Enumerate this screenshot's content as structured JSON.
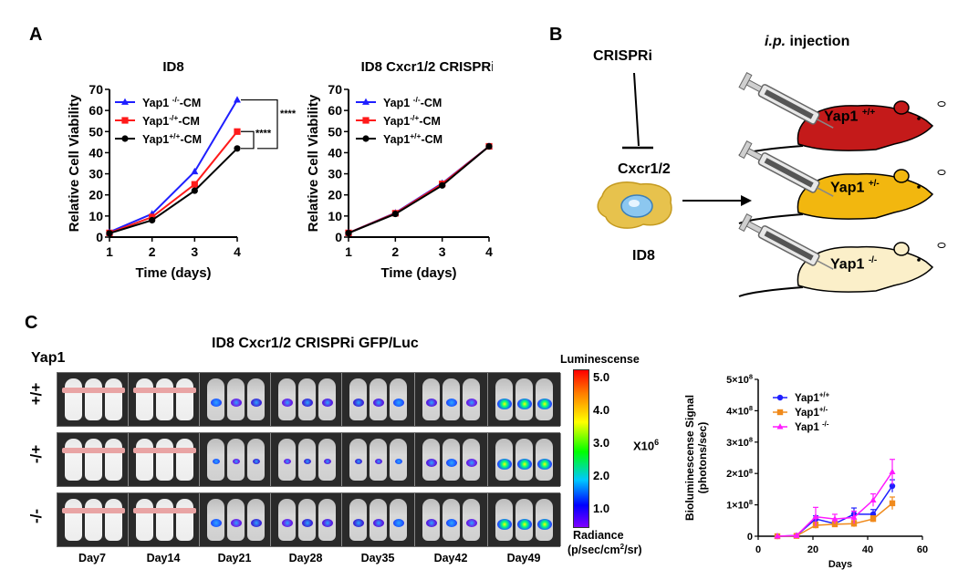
{
  "panel_a": {
    "letter": "A",
    "chart_data": [
      {
        "type": "line",
        "title": "ID8",
        "xlabel": "Time (days)",
        "ylabel": "Relative Cell Viability",
        "x": [
          1,
          2,
          3,
          4
        ],
        "xlim": [
          1,
          4
        ],
        "ylim": [
          0,
          70
        ],
        "yticks": [
          0,
          10,
          20,
          30,
          40,
          50,
          60,
          70
        ],
        "legend_position": "top-left",
        "series": [
          {
            "name": "Yap1 -/--CM",
            "name_base": "Yap1 ",
            "name_sup": "-/-",
            "name_tail": "-CM",
            "color": "#1f1fff",
            "marker": "triangle",
            "values": [
              2.4,
              11,
              31,
              65
            ]
          },
          {
            "name": "Yap1-/+-CM",
            "name_base": "Yap1",
            "name_sup": "-/+",
            "name_tail": "-CM",
            "color": "#ff1a1a",
            "marker": "square",
            "values": [
              2,
              9.5,
              25,
              50
            ]
          },
          {
            "name": "Yap1+/+-CM",
            "name_base": "Yap1",
            "name_sup": "+/+",
            "name_tail": "-CM",
            "color": "#000000",
            "marker": "circle",
            "values": [
              1.8,
              8,
              22,
              42
            ]
          }
        ],
        "annotations": [
          "****",
          "****"
        ]
      },
      {
        "type": "line",
        "title": "ID8 Cxcr1/2 CRISPRi",
        "xlabel": "Time (days)",
        "ylabel": "Relative Cell Viability",
        "x": [
          1,
          2,
          3,
          4
        ],
        "xlim": [
          1,
          4
        ],
        "ylim": [
          0,
          70
        ],
        "yticks": [
          0,
          10,
          20,
          30,
          40,
          50,
          60,
          70
        ],
        "legend_position": "top-left",
        "series": [
          {
            "name": "Yap1 -/--CM",
            "name_base": "Yap1 ",
            "name_sup": "-/-",
            "name_tail": "-CM",
            "color": "#1f1fff",
            "marker": "triangle",
            "values": [
              2,
              11.5,
              25.5,
              43
            ]
          },
          {
            "name": "Yap1-/+-CM",
            "name_base": "Yap1",
            "name_sup": "-/+",
            "name_tail": "-CM",
            "color": "#ff1a1a",
            "marker": "square",
            "values": [
              2,
              11.3,
              25.2,
              43
            ]
          },
          {
            "name": "Yap1+/+-CM",
            "name_base": "Yap1",
            "name_sup": "+/+",
            "name_tail": "-CM",
            "color": "#000000",
            "marker": "circle",
            "values": [
              1.9,
              11,
              24.5,
              43
            ]
          }
        ]
      }
    ]
  },
  "panel_b": {
    "letter": "B",
    "crispri": "CRISPRi",
    "injection_italic": "i.p.",
    "injection_rest": " injection",
    "target": "Cxcr1/2",
    "cell_line": "ID8",
    "mice": [
      {
        "base": "Yap1 ",
        "sup": "+/+",
        "color": "#c41a1a"
      },
      {
        "base": "Yap1 ",
        "sup": "+/-",
        "color": "#f2b70f"
      },
      {
        "base": "Yap1 ",
        "sup": "-/-",
        "color": "#fbefc9"
      }
    ]
  },
  "panel_c": {
    "letter": "C",
    "genotype_header": "Yap1",
    "title": "ID8 Cxcr1/2 CRISPRi GFP/Luc",
    "row_labels": [
      "+/+",
      "-/+",
      "-/-"
    ],
    "days": [
      "Day7",
      "Day14",
      "Day21",
      "Day28",
      "Day35",
      "Day42",
      "Day49"
    ],
    "colorbar": {
      "top_label": "Luminescense",
      "ticks": [
        "5.0",
        "4.0",
        "3.0",
        "2.0",
        "1.0"
      ],
      "multiplier_base": "X10",
      "multiplier_exp": "6",
      "bottom_label_1": "Radiance",
      "bottom_label_2_base": "(p/sec/cm",
      "bottom_label_2_sup": "2",
      "bottom_label_2_tail": "/sr)"
    },
    "chart_data": {
      "type": "line",
      "xlabel": "Days",
      "ylabel_line1": "Bioluminescense Signal",
      "ylabel_line2": "(photons/sec)",
      "x": [
        7,
        14,
        21,
        28,
        35,
        42,
        49
      ],
      "xlim": [
        0,
        60
      ],
      "xticks": [
        0,
        20,
        40,
        60
      ],
      "ylim": [
        0,
        500000000
      ],
      "yticks": [
        {
          "value": 0,
          "base": "0",
          "exp": ""
        },
        {
          "value": 100000000,
          "base": "1×10",
          "exp": "8"
        },
        {
          "value": 200000000,
          "base": "2×10",
          "exp": "8"
        },
        {
          "value": 300000000,
          "base": "3×10",
          "exp": "8"
        },
        {
          "value": 400000000,
          "base": "4×10",
          "exp": "8"
        },
        {
          "value": 500000000,
          "base": "5×10",
          "exp": "8"
        }
      ],
      "legend_position": "top-left",
      "series": [
        {
          "name": "Yap1+/+",
          "name_base": "Yap1",
          "name_sup": "+/+",
          "color": "#1f1fff",
          "marker": "circle",
          "values": [
            0,
            2000000,
            55000000,
            40000000,
            70000000,
            70000000,
            160000000
          ],
          "errors": [
            0,
            1000000,
            10000000,
            8000000,
            20000000,
            15000000,
            20000000
          ]
        },
        {
          "name": "Yap1+/-",
          "name_base": "Yap1",
          "name_sup": "+/-",
          "color": "#f08a1c",
          "marker": "square",
          "values": [
            0,
            1000000,
            35000000,
            38000000,
            40000000,
            55000000,
            105000000
          ],
          "errors": [
            0,
            1000000,
            10000000,
            8000000,
            10000000,
            10000000,
            20000000
          ]
        },
        {
          "name": "Yap1 -/-",
          "name_base": "Yap1 ",
          "name_sup": "-/-",
          "color": "#ff1aff",
          "marker": "triangle",
          "values": [
            0,
            2000000,
            62000000,
            55000000,
            60000000,
            115000000,
            205000000
          ],
          "errors": [
            0,
            1000000,
            30000000,
            15000000,
            20000000,
            20000000,
            40000000
          ]
        }
      ]
    }
  }
}
